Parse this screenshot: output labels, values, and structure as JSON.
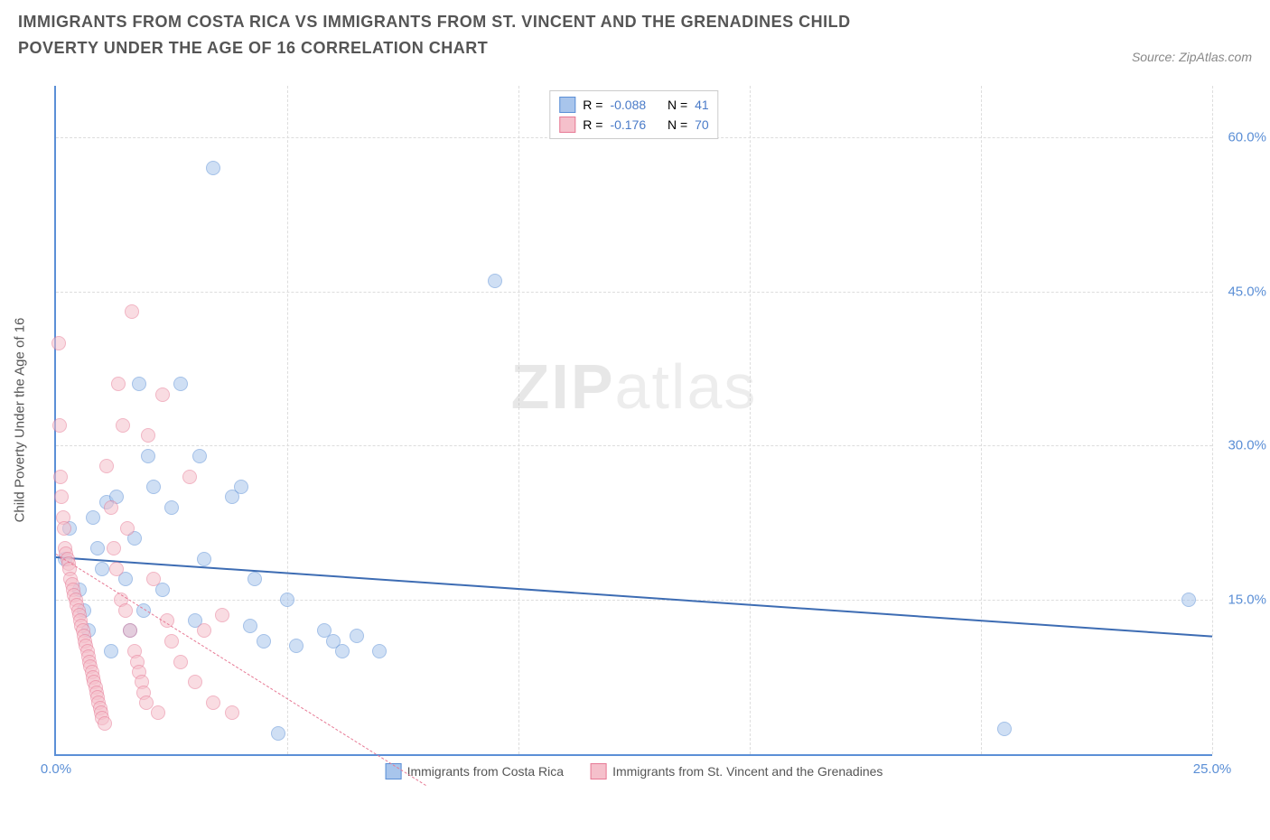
{
  "title": "IMMIGRANTS FROM COSTA RICA VS IMMIGRANTS FROM ST. VINCENT AND THE GRENADINES CHILD POVERTY UNDER THE AGE OF 16 CORRELATION CHART",
  "source_label": "Source:",
  "source_name": "ZipAtlas.com",
  "y_axis_label": "Child Poverty Under the Age of 16",
  "watermark_bold": "ZIP",
  "watermark_light": "atlas",
  "chart": {
    "type": "scatter",
    "xlim": [
      0,
      25
    ],
    "ylim": [
      0,
      65
    ],
    "x_ticks": [
      0,
      5,
      10,
      15,
      20,
      25
    ],
    "x_tick_labels": [
      "0.0%",
      "",
      "",
      "",
      "",
      "25.0%"
    ],
    "y_ticks": [
      15,
      30,
      45,
      60
    ],
    "y_tick_labels": [
      "15.0%",
      "30.0%",
      "45.0%",
      "60.0%"
    ],
    "grid_color": "#dddddd",
    "axis_color": "#5b8fd6",
    "background_color": "#ffffff",
    "point_radius": 8,
    "point_border_width": 1.5,
    "point_opacity": 0.55
  },
  "series": [
    {
      "name": "Immigrants from Costa Rica",
      "color_fill": "#a8c5ec",
      "color_border": "#5b8fd6",
      "r": "-0.088",
      "n": "41",
      "trend": {
        "x1": 0,
        "y1": 19.2,
        "x2": 25,
        "y2": 11.5,
        "dash": false,
        "width": 2.5,
        "color": "#3d6cb3"
      },
      "points": [
        [
          0.2,
          19
        ],
        [
          0.3,
          22
        ],
        [
          0.5,
          16
        ],
        [
          0.6,
          14
        ],
        [
          0.7,
          12
        ],
        [
          0.8,
          23
        ],
        [
          0.9,
          20
        ],
        [
          1.0,
          18
        ],
        [
          1.1,
          24.5
        ],
        [
          1.2,
          10
        ],
        [
          1.3,
          25
        ],
        [
          1.5,
          17
        ],
        [
          1.6,
          12
        ],
        [
          1.7,
          21
        ],
        [
          1.8,
          36
        ],
        [
          1.9,
          14
        ],
        [
          2.0,
          29
        ],
        [
          2.1,
          26
        ],
        [
          2.3,
          16
        ],
        [
          2.5,
          24
        ],
        [
          2.7,
          36
        ],
        [
          3.0,
          13
        ],
        [
          3.1,
          29
        ],
        [
          3.2,
          19
        ],
        [
          3.4,
          57
        ],
        [
          3.8,
          25
        ],
        [
          4.0,
          26
        ],
        [
          4.2,
          12.5
        ],
        [
          4.3,
          17
        ],
        [
          4.5,
          11
        ],
        [
          4.8,
          2
        ],
        [
          5.0,
          15
        ],
        [
          5.2,
          10.5
        ],
        [
          5.8,
          12
        ],
        [
          6.0,
          11
        ],
        [
          6.2,
          10
        ],
        [
          6.5,
          11.5
        ],
        [
          7.0,
          10
        ],
        [
          9.5,
          46
        ],
        [
          20.5,
          2.5
        ],
        [
          24.5,
          15
        ]
      ]
    },
    {
      "name": "Immigrants from St. Vincent and the Grenadines",
      "color_fill": "#f5c0cb",
      "color_border": "#e77a95",
      "r": "-0.176",
      "n": "70",
      "trend": {
        "x1": 0,
        "y1": 19.5,
        "x2": 8,
        "y2": -3,
        "dash": true,
        "width": 1.5,
        "color": "#e77a95"
      },
      "points": [
        [
          0.05,
          40
        ],
        [
          0.08,
          32
        ],
        [
          0.1,
          27
        ],
        [
          0.12,
          25
        ],
        [
          0.15,
          23
        ],
        [
          0.18,
          22
        ],
        [
          0.2,
          20
        ],
        [
          0.22,
          19.5
        ],
        [
          0.25,
          19
        ],
        [
          0.28,
          18.5
        ],
        [
          0.3,
          18
        ],
        [
          0.32,
          17
        ],
        [
          0.35,
          16.5
        ],
        [
          0.38,
          16
        ],
        [
          0.4,
          15.5
        ],
        [
          0.42,
          15
        ],
        [
          0.45,
          14.5
        ],
        [
          0.48,
          14
        ],
        [
          0.5,
          13.5
        ],
        [
          0.52,
          13
        ],
        [
          0.55,
          12.5
        ],
        [
          0.58,
          12
        ],
        [
          0.6,
          11.5
        ],
        [
          0.62,
          11
        ],
        [
          0.65,
          10.5
        ],
        [
          0.68,
          10
        ],
        [
          0.7,
          9.5
        ],
        [
          0.72,
          9
        ],
        [
          0.75,
          8.5
        ],
        [
          0.78,
          8
        ],
        [
          0.8,
          7.5
        ],
        [
          0.82,
          7
        ],
        [
          0.85,
          6.5
        ],
        [
          0.88,
          6
        ],
        [
          0.9,
          5.5
        ],
        [
          0.92,
          5
        ],
        [
          0.95,
          4.5
        ],
        [
          0.98,
          4
        ],
        [
          1.0,
          3.5
        ],
        [
          1.05,
          3
        ],
        [
          1.1,
          28
        ],
        [
          1.2,
          24
        ],
        [
          1.25,
          20
        ],
        [
          1.3,
          18
        ],
        [
          1.35,
          36
        ],
        [
          1.4,
          15
        ],
        [
          1.45,
          32
        ],
        [
          1.5,
          14
        ],
        [
          1.55,
          22
        ],
        [
          1.6,
          12
        ],
        [
          1.65,
          43
        ],
        [
          1.7,
          10
        ],
        [
          1.75,
          9
        ],
        [
          1.8,
          8
        ],
        [
          1.85,
          7
        ],
        [
          1.9,
          6
        ],
        [
          1.95,
          5
        ],
        [
          2.0,
          31
        ],
        [
          2.1,
          17
        ],
        [
          2.2,
          4
        ],
        [
          2.3,
          35
        ],
        [
          2.4,
          13
        ],
        [
          2.5,
          11
        ],
        [
          2.7,
          9
        ],
        [
          2.9,
          27
        ],
        [
          3.0,
          7
        ],
        [
          3.2,
          12
        ],
        [
          3.4,
          5
        ],
        [
          3.6,
          13.5
        ],
        [
          3.8,
          4
        ]
      ]
    }
  ],
  "legend_stats": {
    "r_label": "R =",
    "n_label": "N ="
  }
}
